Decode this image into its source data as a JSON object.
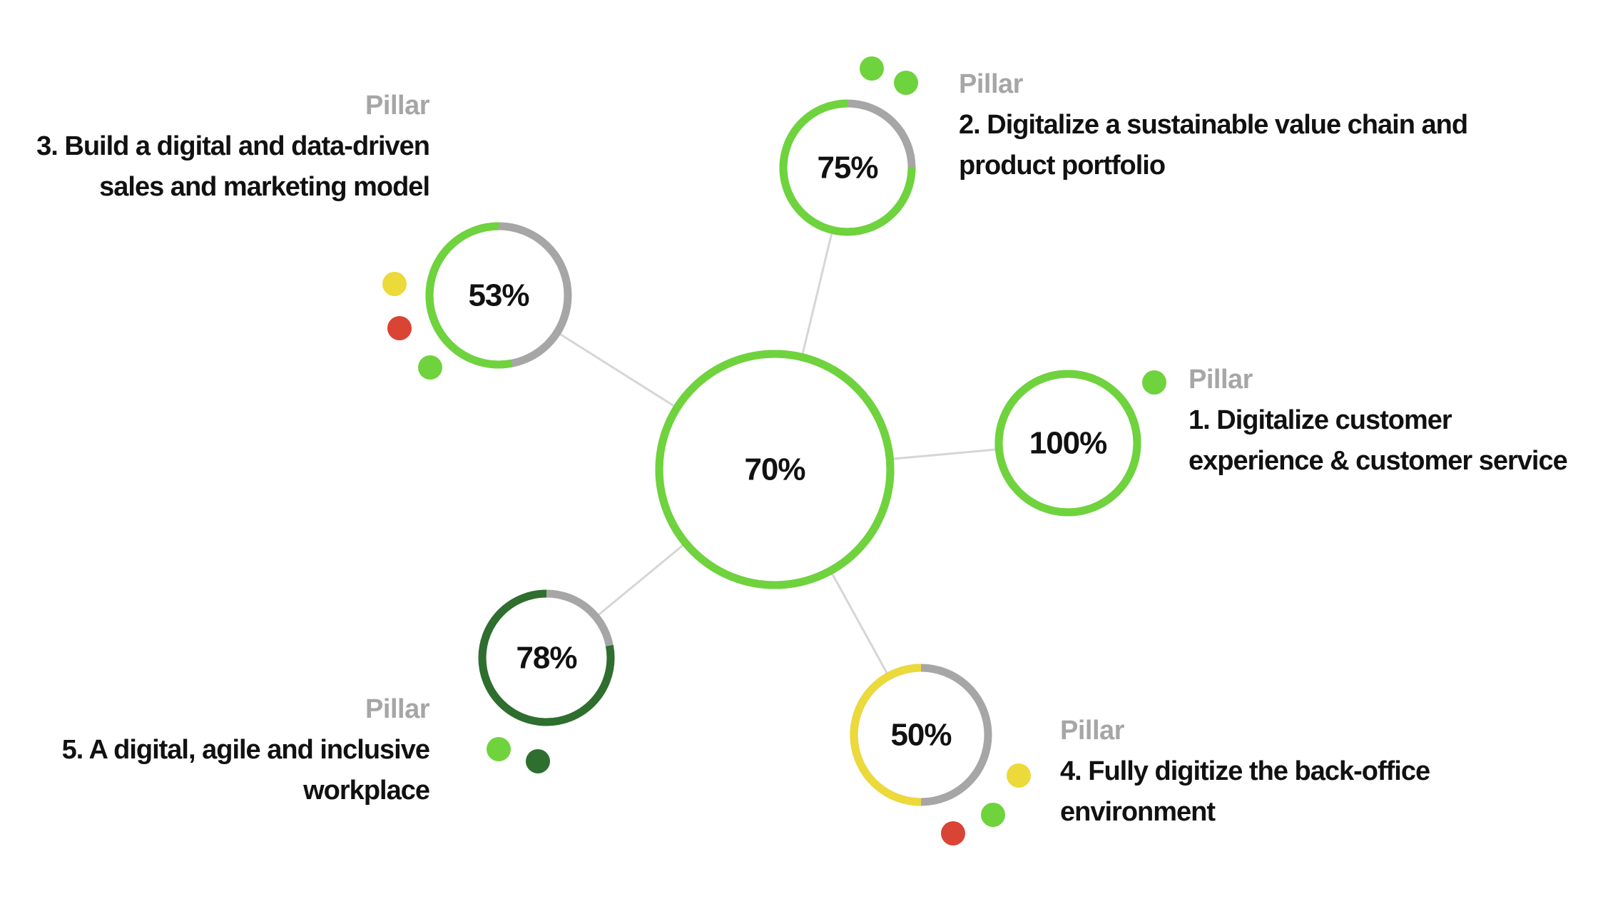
{
  "colors": {
    "green": "#6ed33c",
    "dark_green": "#2e6e2e",
    "yellow": "#ecd93a",
    "red": "#d94434",
    "gray_track": "#a6a6a6",
    "connector": "#d6d6d6",
    "kicker_text": "#a6a6a6",
    "title_text": "#111111"
  },
  "center": {
    "value": "70%",
    "progress": 1.0,
    "color": "#6ed33c"
  },
  "pillars": [
    {
      "id": "p1",
      "kicker": "Pillar",
      "title_lines": [
        "1. Digitalize customer",
        "experience & customer service"
      ],
      "value": "100%",
      "progress": 1.0,
      "color": "#6ed33c",
      "status_dots": [
        "#6ed33c"
      ]
    },
    {
      "id": "p2",
      "kicker": "Pillar",
      "title_lines": [
        "2. Digitalize a sustainable value chain and",
        "product portfolio"
      ],
      "value": "75%",
      "progress": 0.75,
      "color": "#6ed33c",
      "status_dots": [
        "#6ed33c",
        "#6ed33c"
      ]
    },
    {
      "id": "p3",
      "kicker": "Pillar",
      "title_lines": [
        "3. Build a digital and data-driven",
        "sales and marketing model"
      ],
      "value": "53%",
      "progress": 0.53,
      "color": "#6ed33c",
      "status_dots": [
        "#ecd93a",
        "#d94434",
        "#6ed33c"
      ]
    },
    {
      "id": "p4",
      "kicker": "Pillar",
      "title_lines": [
        "4. Fully digitize the back-office",
        "environment"
      ],
      "value": "50%",
      "progress": 0.5,
      "color": "#ecd93a",
      "status_dots": [
        "#ecd93a",
        "#6ed33c",
        "#d94434"
      ]
    },
    {
      "id": "p5",
      "kicker": "Pillar",
      "title_lines": [
        "5. A digital, agile and inclusive",
        "workplace"
      ],
      "value": "78%",
      "progress": 0.78,
      "color": "#2e6e2e",
      "status_dots": [
        "#6ed33c",
        "#2e6e2e"
      ]
    }
  ]
}
